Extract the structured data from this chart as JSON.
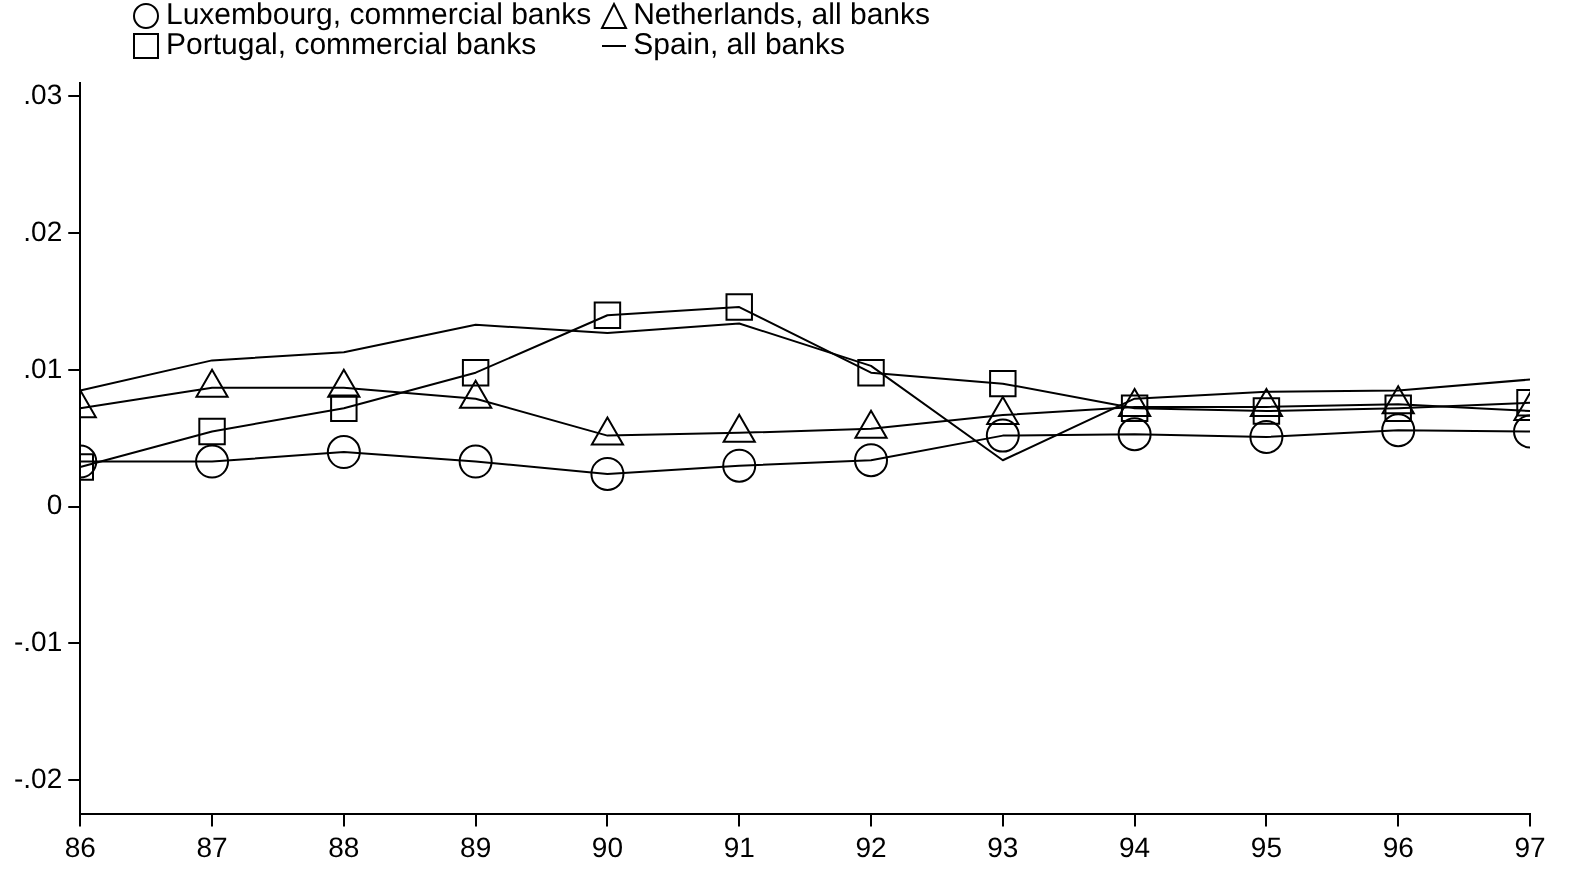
{
  "chart_data": {
    "type": "line",
    "x": [
      86,
      87,
      88,
      89,
      90,
      91,
      92,
      93,
      94,
      95,
      96,
      97
    ],
    "xlim": [
      86,
      97
    ],
    "xticks": [
      86,
      87,
      88,
      89,
      90,
      91,
      92,
      93,
      94,
      95,
      96,
      97
    ],
    "ylim": [
      -0.0225,
      0.031
    ],
    "yticks": [
      {
        "value": 0.03,
        "label": ".03"
      },
      {
        "value": 0.02,
        "label": ".02"
      },
      {
        "value": 0.01,
        "label": ".01"
      },
      0,
      {
        "value": -0.01,
        "label": "-.01"
      },
      {
        "value": -0.02,
        "label": "-.02"
      }
    ],
    "grid": false,
    "legend": "top",
    "series": [
      {
        "name": "Luxembourg, commercial banks",
        "color": "#000000",
        "marker": "circle",
        "values": [
          0.0033,
          0.0033,
          0.004,
          0.0033,
          0.0024,
          0.003,
          0.0034,
          0.0052,
          0.0053,
          0.0051,
          0.0056,
          0.0055
        ]
      },
      {
        "name": "Netherlands, all banks",
        "color": "#000000",
        "marker": "triangle",
        "values": [
          0.0072,
          0.0087,
          0.0087,
          0.0079,
          0.0052,
          0.0054,
          0.0057,
          0.0067,
          0.0073,
          0.0073,
          0.0075,
          0.007
        ]
      },
      {
        "name": "Portugal, commercial banks",
        "color": "#000000",
        "marker": "square",
        "values": [
          0.0029,
          0.0055,
          0.0072,
          0.0098,
          0.014,
          0.0146,
          0.0098,
          0.009,
          0.0072,
          0.007,
          0.0072,
          0.0076
        ]
      },
      {
        "name": "Spain, all banks",
        "color": "#000000",
        "marker": "none",
        "values": [
          0.0085,
          0.0107,
          0.0113,
          0.0133,
          0.0127,
          0.0134,
          0.0103,
          0.0034,
          0.0079,
          0.0084,
          0.0085,
          0.0093
        ]
      }
    ]
  }
}
